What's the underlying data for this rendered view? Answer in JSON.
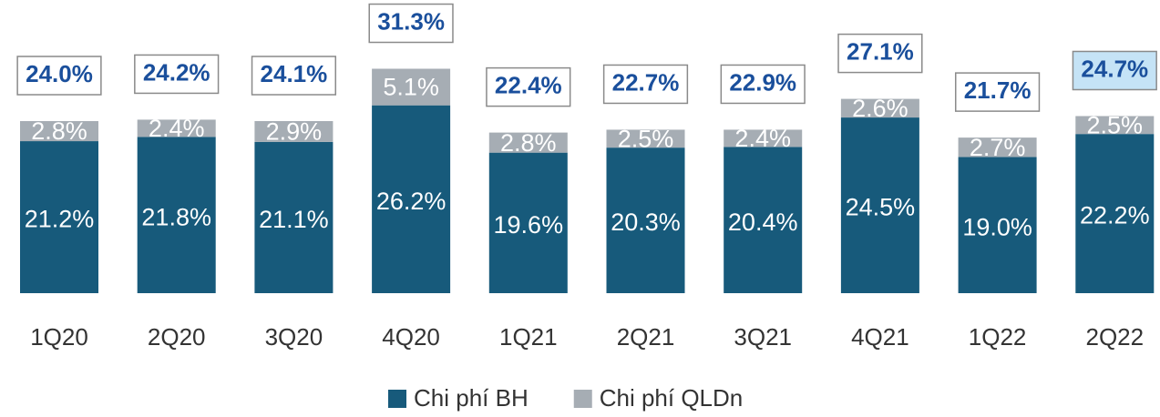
{
  "chart_data": {
    "type": "stacked_bar",
    "categories": [
      "1Q20",
      "2Q20",
      "3Q20",
      "4Q20",
      "1Q21",
      "2Q21",
      "3Q21",
      "4Q21",
      "1Q22",
      "2Q22"
    ],
    "series": [
      {
        "name": "Chi phí BH",
        "color": "#175a7b",
        "values": [
          21.2,
          21.8,
          21.1,
          26.2,
          19.6,
          20.3,
          20.4,
          24.5,
          19.0,
          22.2
        ],
        "value_labels": [
          "21.2%",
          "21.8%",
          "21.1%",
          "26.2%",
          "19.6%",
          "20.3%",
          "20.4%",
          "24.5%",
          "19.0%",
          "22.2%"
        ]
      },
      {
        "name": "Chi phí QLDn",
        "color": "#a6adb4",
        "values": [
          2.8,
          2.4,
          2.9,
          5.1,
          2.8,
          2.5,
          2.4,
          2.6,
          2.7,
          2.5
        ],
        "value_labels": [
          "2.8%",
          "2.4%",
          "2.9%",
          "5.1%",
          "2.8%",
          "2.5%",
          "2.4%",
          "2.6%",
          "2.7%",
          "2.5%"
        ]
      }
    ],
    "totals": {
      "values": [
        24.0,
        24.2,
        24.1,
        31.3,
        22.4,
        22.7,
        22.9,
        27.1,
        21.7,
        24.7
      ],
      "value_labels": [
        "24.0%",
        "24.2%",
        "24.1%",
        "31.3%",
        "22.4%",
        "22.7%",
        "22.9%",
        "27.1%",
        "21.7%",
        "24.7%"
      ],
      "box_fills": [
        "#ffffff",
        "#ffffff",
        "#ffffff",
        "#ffffff",
        "#ffffff",
        "#ffffff",
        "#ffffff",
        "#ffffff",
        "#ffffff",
        "#c5e3f6"
      ],
      "color": "#1a4f9c"
    },
    "ylim": [
      0,
      40
    ],
    "legend": "bottom"
  }
}
